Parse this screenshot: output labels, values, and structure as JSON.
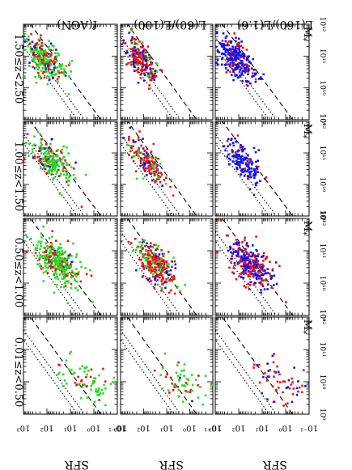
{
  "chart_data": {
    "type": "scatter",
    "orientation_note": "figure is printed upside-down and rotated",
    "ylabel": "SFR",
    "xlabel_parts": [
      "M",
      "*"
    ],
    "yticks": [
      "10⁻¹",
      "10⁰",
      "10¹",
      "10²",
      "10³"
    ],
    "xticks": [
      "10⁹",
      "10¹⁰",
      "10¹¹",
      "10¹²"
    ],
    "xlim": [
      9,
      12
    ],
    "ylim": [
      -1,
      3
    ],
    "xaxis_log": true,
    "yaxis_log": true,
    "columns": [
      "0.01≤z<0.50",
      "0.50≤z<1.00",
      "1.00≤z<1.50",
      "1.50≤z<2.50"
    ],
    "rows": [
      "f(AGN)",
      "L(60)/L(100)",
      "L(160)/L(1.6)"
    ],
    "reference_lines": [
      {
        "style": "dashed",
        "slope": 1,
        "offset": -9.3
      },
      {
        "style": "dotted",
        "slope": 1,
        "offset": -8.6
      },
      {
        "style": "dotted",
        "slope": 1,
        "offset": -8.3
      }
    ],
    "colors": {
      "green": "#22dd22",
      "red": "#ee1111",
      "blue": "#1111ee"
    },
    "panels": [
      {
        "row": 0,
        "col": 0,
        "n": 70,
        "xmean": 10.0,
        "ymean": 0.3,
        "spread": 0.55,
        "mix": [
          0.7,
          0.3,
          0.0
        ]
      },
      {
        "row": 0,
        "col": 1,
        "n": 300,
        "xmean": 10.6,
        "ymean": 1.5,
        "spread": 0.4,
        "mix": [
          0.7,
          0.25,
          0.05
        ]
      },
      {
        "row": 0,
        "col": 2,
        "n": 220,
        "xmean": 10.7,
        "ymean": 1.8,
        "spread": 0.35,
        "mix": [
          0.7,
          0.25,
          0.05
        ]
      },
      {
        "row": 0,
        "col": 3,
        "n": 260,
        "xmean": 10.9,
        "ymean": 2.1,
        "spread": 0.35,
        "mix": [
          0.6,
          0.3,
          0.1
        ]
      },
      {
        "row": 1,
        "col": 0,
        "n": 60,
        "xmean": 10.0,
        "ymean": 0.3,
        "spread": 0.55,
        "mix": [
          0.55,
          0.4,
          0.05
        ]
      },
      {
        "row": 1,
        "col": 1,
        "n": 260,
        "xmean": 10.6,
        "ymean": 1.5,
        "spread": 0.35,
        "mix": [
          0.25,
          0.65,
          0.1
        ]
      },
      {
        "row": 1,
        "col": 2,
        "n": 160,
        "xmean": 10.7,
        "ymean": 1.8,
        "spread": 0.3,
        "mix": [
          0.2,
          0.6,
          0.2
        ]
      },
      {
        "row": 1,
        "col": 3,
        "n": 220,
        "xmean": 10.9,
        "ymean": 2.1,
        "spread": 0.3,
        "mix": [
          0.15,
          0.55,
          0.3
        ]
      },
      {
        "row": 2,
        "col": 0,
        "n": 60,
        "xmean": 10.0,
        "ymean": 0.2,
        "spread": 0.55,
        "mix": [
          0.0,
          0.7,
          0.3
        ]
      },
      {
        "row": 2,
        "col": 1,
        "n": 300,
        "xmean": 10.6,
        "ymean": 1.5,
        "spread": 0.4,
        "mix": [
          0.0,
          0.45,
          0.55
        ]
      },
      {
        "row": 2,
        "col": 2,
        "n": 150,
        "xmean": 10.7,
        "ymean": 1.8,
        "spread": 0.3,
        "mix": [
          0.0,
          0.15,
          0.85
        ]
      },
      {
        "row": 2,
        "col": 3,
        "n": 260,
        "xmean": 10.9,
        "ymean": 2.1,
        "spread": 0.35,
        "mix": [
          0.0,
          0.2,
          0.8
        ]
      }
    ]
  }
}
